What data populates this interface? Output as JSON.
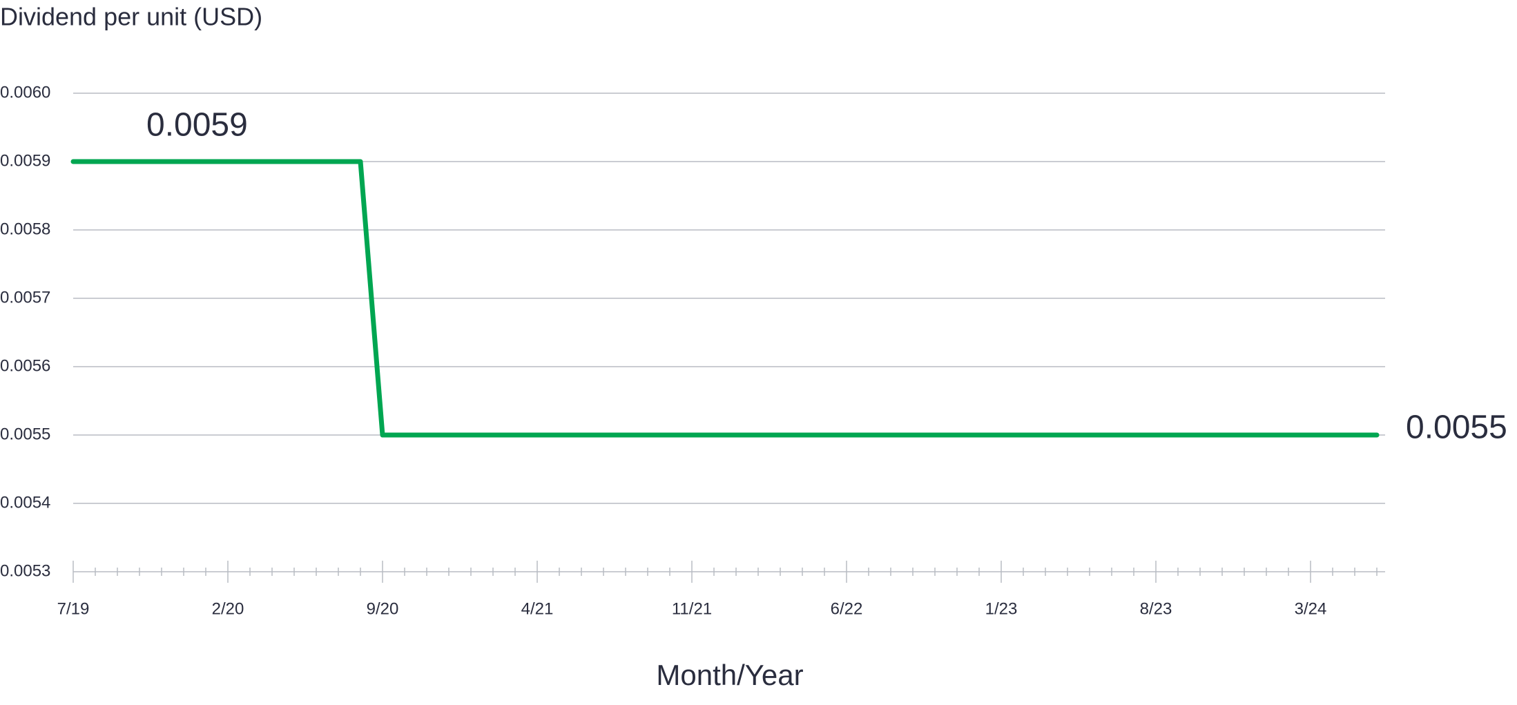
{
  "chart_data": {
    "type": "line",
    "y_axis_title": "Dividend per unit (USD)",
    "x_axis_title": "Month/Year",
    "categories": [
      "7/19",
      null,
      null,
      null,
      null,
      null,
      null,
      "2/20",
      null,
      null,
      null,
      null,
      null,
      null,
      "9/20",
      null,
      null,
      null,
      null,
      null,
      null,
      "4/21",
      null,
      null,
      null,
      null,
      null,
      null,
      "11/21",
      null,
      null,
      null,
      null,
      null,
      null,
      "6/22",
      null,
      null,
      null,
      null,
      null,
      null,
      "1/23",
      null,
      null,
      null,
      null,
      null,
      null,
      "8/23",
      null,
      null,
      null,
      null,
      null,
      null,
      "3/24",
      null,
      null,
      null
    ],
    "series": [
      {
        "name": "Dividend per unit",
        "color": "#00a651",
        "values": [
          0.0059,
          0.0059,
          0.0059,
          0.0059,
          0.0059,
          0.0059,
          0.0059,
          0.0059,
          0.0059,
          0.0059,
          0.0059,
          0.0059,
          0.0059,
          0.0059,
          0.0055,
          0.0055,
          0.0055,
          0.0055,
          0.0055,
          0.0055,
          0.0055,
          0.0055,
          0.0055,
          0.0055,
          0.0055,
          0.0055,
          0.0055,
          0.0055,
          0.0055,
          0.0055,
          0.0055,
          0.0055,
          0.0055,
          0.0055,
          0.0055,
          0.0055,
          0.0055,
          0.0055,
          0.0055,
          0.0055,
          0.0055,
          0.0055,
          0.0055,
          0.0055,
          0.0055,
          0.0055,
          0.0055,
          0.0055,
          0.0055,
          0.0055,
          0.0055,
          0.0055,
          0.0055,
          0.0055,
          0.0055,
          0.0055,
          0.0055,
          0.0055,
          0.0055,
          0.0055
        ]
      }
    ],
    "data_labels": "first-last",
    "ylim": [
      0.0053,
      0.006
    ],
    "yticks": [
      0.0053,
      0.0054,
      0.0055,
      0.0056,
      0.0057,
      0.0058,
      0.0059,
      {
        "value": 0.006,
        "label": "0.0060"
      }
    ],
    "grid": true
  }
}
